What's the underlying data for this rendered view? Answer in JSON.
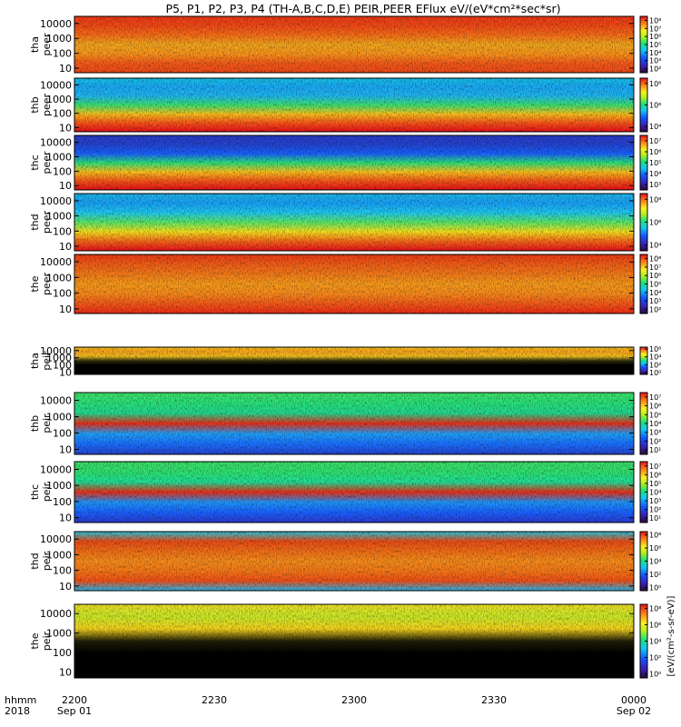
{
  "chart_data": {
    "type": "heatmap",
    "title": "P5, P1, P2, P3, P4 (TH-A,B,C,D,E) PEIR,PEER EFlux eV/(eV*cm²*sec*sr)",
    "colorbar_label": "[eV/(cm²-s-sr-eV)]",
    "x_axis": {
      "row_labels": [
        "hhmm",
        "2018"
      ],
      "ticks": [
        {
          "time": "2200",
          "date": "Sep 01"
        },
        {
          "time": "2230",
          "date": ""
        },
        {
          "time": "2300",
          "date": ""
        },
        {
          "time": "2330",
          "date": ""
        },
        {
          "time": "0000",
          "date": "Sep 02"
        }
      ],
      "range": [
        "2018-09-01 22:00",
        "2018-09-02 00:00"
      ]
    },
    "y_axis": {
      "scale": "log",
      "range": [
        5,
        30000
      ],
      "tick_labels": [
        "10",
        "100",
        "1000",
        "10000"
      ],
      "tick_values": [
        10,
        100,
        1000,
        10000
      ]
    },
    "panels": [
      {
        "probe": "tha",
        "species": "peer",
        "line1": "tha",
        "line2": "peer",
        "cbar_ticks": [
          "10²",
          "10³",
          "10⁴",
          "10⁵",
          "10⁶",
          "10⁷",
          "10⁸"
        ],
        "cbar_exps": [
          2,
          3,
          4,
          5,
          6,
          7,
          8
        ]
      },
      {
        "probe": "thb",
        "species": "peer",
        "line1": "thb",
        "line2": "peer",
        "cbar_ticks": [
          "10⁴",
          "10⁶",
          "10⁸"
        ],
        "cbar_exps": [
          4,
          6,
          8
        ]
      },
      {
        "probe": "thc",
        "species": "peer",
        "line1": "thc",
        "line2": "peer",
        "cbar_ticks": [
          "10³",
          "10⁴",
          "10⁵",
          "10⁶",
          "10⁷"
        ],
        "cbar_exps": [
          3,
          4,
          5,
          6,
          7
        ]
      },
      {
        "probe": "thd",
        "species": "peer",
        "line1": "thd",
        "line2": "peer",
        "cbar_ticks": [
          "10⁴",
          "10⁶",
          "10⁸"
        ],
        "cbar_exps": [
          4,
          6,
          8
        ]
      },
      {
        "probe": "the",
        "species": "peer",
        "line1": "the",
        "line2": "peer",
        "cbar_ticks": [
          "10²",
          "10³",
          "10⁴",
          "10⁵",
          "10⁶",
          "10⁷",
          "10⁸"
        ],
        "cbar_exps": [
          2,
          3,
          4,
          5,
          6,
          7,
          8
        ]
      },
      {
        "probe": "tha",
        "species": "peir",
        "line1": "tha",
        "line2": "peir",
        "cbar_ticks": [
          "10⁰",
          "10²",
          "10⁴",
          "10⁶"
        ],
        "cbar_exps": [
          0,
          2,
          4,
          6
        ]
      },
      {
        "probe": "thb",
        "species": "peir",
        "line1": "thb",
        "line2": "peir",
        "cbar_ticks": [
          "10¹",
          "10²",
          "10³",
          "10⁴",
          "10⁵",
          "10⁶",
          "10⁷"
        ],
        "cbar_exps": [
          1,
          2,
          3,
          4,
          5,
          6,
          7
        ]
      },
      {
        "probe": "thc",
        "species": "peir",
        "line1": "thc",
        "line2": "peir",
        "cbar_ticks": [
          "10¹",
          "10²",
          "10³",
          "10⁴",
          "10⁵",
          "10⁶",
          "10⁷"
        ],
        "cbar_exps": [
          1,
          2,
          3,
          4,
          5,
          6,
          7
        ]
      },
      {
        "probe": "thd",
        "species": "peir",
        "line1": "thd",
        "line2": "peir",
        "cbar_ticks": [
          "10⁰",
          "10²",
          "10⁴",
          "10⁶",
          "10⁸"
        ],
        "cbar_exps": [
          0,
          2,
          4,
          6,
          8
        ]
      },
      {
        "probe": "the",
        "species": "peir",
        "line1": "the",
        "line2": "peir",
        "cbar_ticks": [
          "10⁰",
          "10²",
          "10⁴",
          "10⁶",
          "10⁸"
        ],
        "cbar_exps": [
          0,
          2,
          4,
          6,
          8
        ]
      }
    ]
  }
}
